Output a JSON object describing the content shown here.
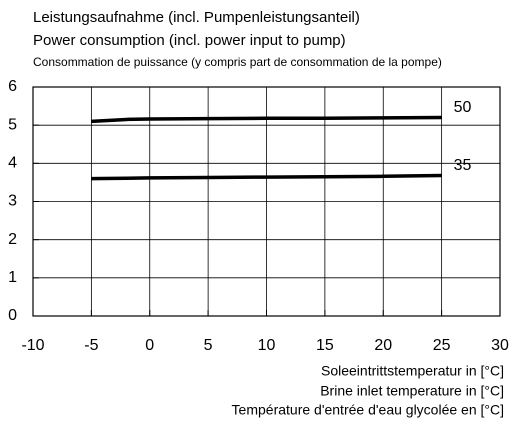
{
  "chart_data": {
    "type": "line",
    "title": [
      "Leistungsaufnahme (incl. Pumpenleistungsanteil)",
      "Power consumption (incl. power input to pump)",
      "Consommation de puissance (y compris part de consommation de la pompe)"
    ],
    "x_label": [
      "Soleeintrittstemperatur in [°C]",
      "Brine inlet temperature in [°C]",
      "Température d'entrée d'eau glycolée en [°C]"
    ],
    "x": [
      -5,
      -2,
      0,
      5,
      10,
      15,
      20,
      25
    ],
    "series": [
      {
        "name": "50",
        "color": "#000000",
        "values": [
          5.1,
          5.15,
          5.16,
          5.17,
          5.18,
          5.18,
          5.19,
          5.2
        ]
      },
      {
        "name": "35",
        "color": "#000000",
        "values": [
          3.6,
          3.61,
          3.62,
          3.63,
          3.64,
          3.65,
          3.66,
          3.68
        ]
      }
    ],
    "xlim": [
      -10,
      30
    ],
    "xticks": [
      -10,
      -5,
      0,
      5,
      10,
      15,
      20,
      25,
      30
    ],
    "ylim": [
      0,
      6
    ],
    "yticks": [
      0,
      1,
      2,
      3,
      4,
      5,
      6
    ],
    "grid": true
  }
}
